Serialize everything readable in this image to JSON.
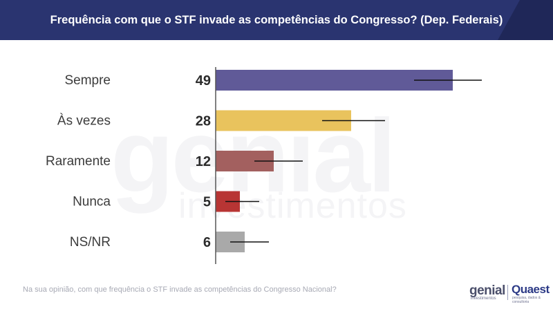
{
  "header": {
    "title": "Frequência com que o STF invade as competências do Congresso? (Dep. Federais)"
  },
  "watermark": {
    "brand": "genial",
    "sub": "investimentos"
  },
  "chart_data": {
    "type": "bar",
    "orientation": "horizontal",
    "title": "Frequência com que o STF invade as competências do Congresso? (Dep. Federais)",
    "categories": [
      "Sempre",
      "Às vezes",
      "Raramente",
      "Nunca",
      "NS/NR"
    ],
    "values": [
      49,
      28,
      12,
      5,
      6
    ],
    "value_labels": [
      "49",
      "28",
      "12",
      "5",
      "6"
    ],
    "error_bars": [
      {
        "low": 41,
        "high": 55
      },
      {
        "low": 22,
        "high": 35
      },
      {
        "low": 8,
        "high": 18
      },
      {
        "low": 2,
        "high": 9
      },
      {
        "low": 3,
        "high": 11
      }
    ],
    "colors": [
      "#605a98",
      "#e9c35d",
      "#a3605f",
      "#b83534",
      "#a9a9a9"
    ],
    "xlim": [
      0,
      50
    ],
    "grid": false,
    "legend": "none"
  },
  "footnote": "Na sua opinião, com que frequência o STF invade as competências do Congresso Nacional?",
  "logos": {
    "genial": "genial",
    "genial_sub": "investimentos",
    "quaest": "Quaest",
    "quaest_sub": "pesquisa, dados & consultoria"
  }
}
